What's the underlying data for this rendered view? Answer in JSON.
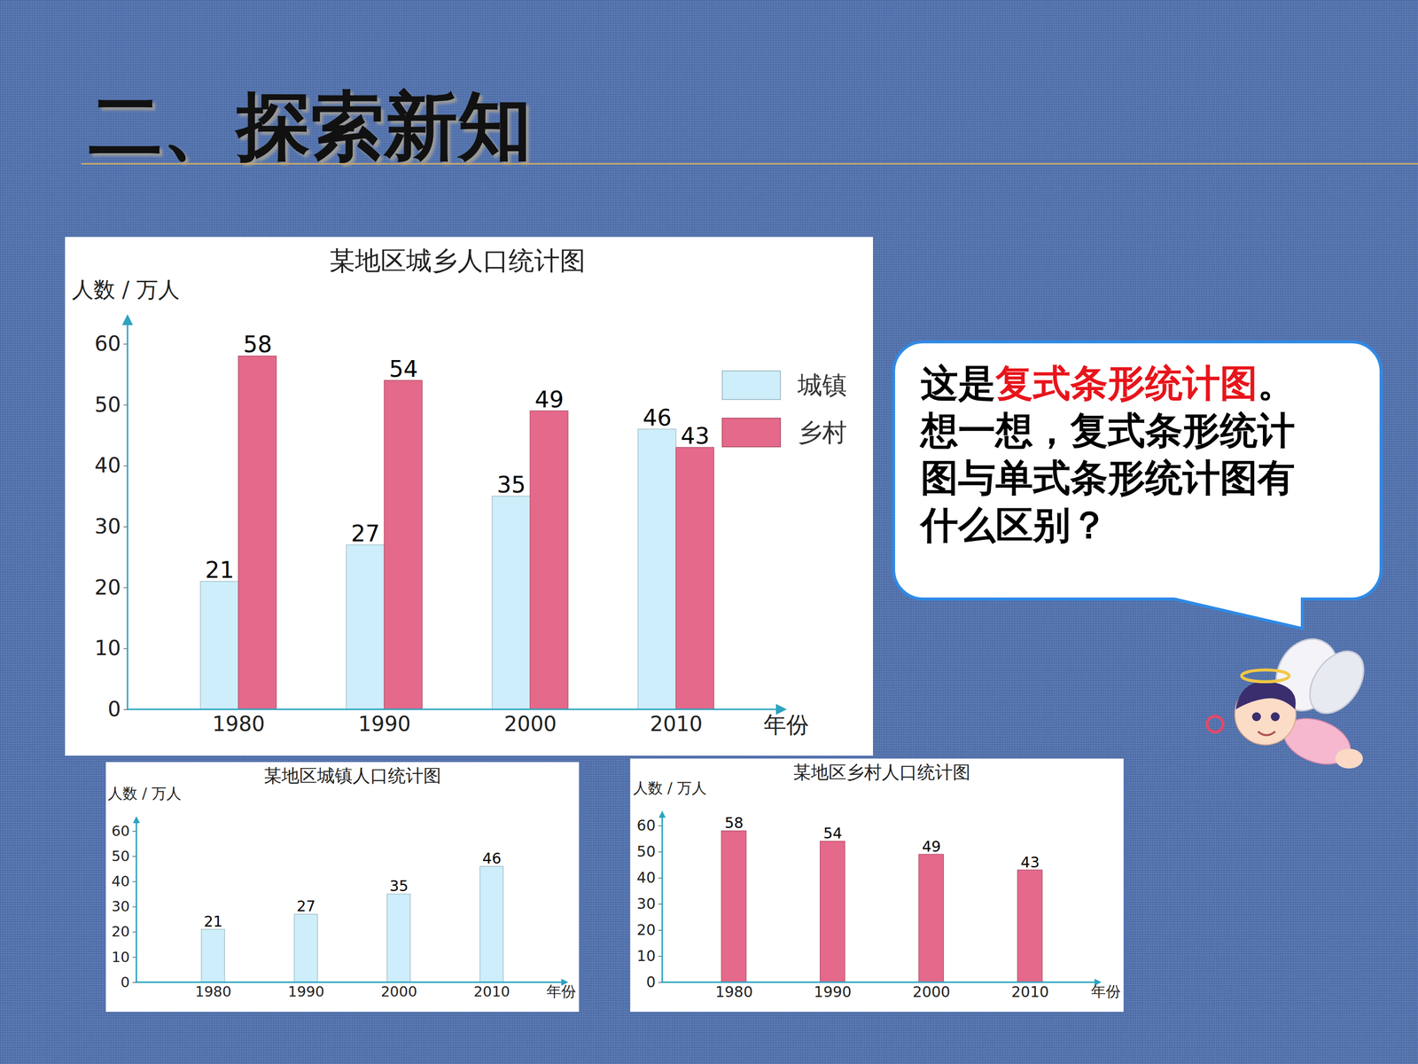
{
  "header": {
    "title": "二、探索新知"
  },
  "callout": {
    "segments": [
      {
        "text": "这是"
      },
      {
        "text": "复式条形统计图",
        "color": "#e8141b"
      },
      {
        "text": "。想一想，复式条形统计图与单式条形统计图有什么区别？"
      }
    ]
  },
  "chart_data": [
    {
      "type": "bar",
      "title": "某地区城乡人口统计图",
      "y_label": "人数 / 万人",
      "x_label": "年份",
      "categories": [
        "1980",
        "1990",
        "2000",
        "2010"
      ],
      "series": [
        {
          "name": "城镇",
          "color": "#cdeefa",
          "values": [
            21,
            27,
            35,
            46
          ]
        },
        {
          "name": "乡村",
          "color": "#e4698a",
          "values": [
            58,
            54,
            49,
            43
          ]
        }
      ],
      "ylim": [
        0,
        60
      ],
      "yticks": [
        0,
        10,
        20,
        30,
        40,
        50,
        60
      ],
      "data_labels": true,
      "legend": "right"
    },
    {
      "type": "bar",
      "title": "某地区城镇人口统计图",
      "y_label": "人数 / 万人",
      "x_label": "年份",
      "categories": [
        "1980",
        "1990",
        "2000",
        "2010"
      ],
      "values": [
        21,
        27,
        35,
        46
      ],
      "color": "#cdeefa",
      "ylim": [
        0,
        60
      ],
      "yticks": [
        0,
        10,
        20,
        30,
        40,
        50,
        60
      ],
      "data_labels": true
    },
    {
      "type": "bar",
      "title": "某地区乡村人口统计图",
      "y_label": "人数 / 万人",
      "x_label": "年份",
      "categories": [
        "1980",
        "1990",
        "2000",
        "2010"
      ],
      "values": [
        58,
        54,
        49,
        43
      ],
      "color": "#e4698a",
      "ylim": [
        0,
        60
      ],
      "yticks": [
        0,
        10,
        20,
        30,
        40,
        50,
        60
      ],
      "data_labels": true
    }
  ]
}
